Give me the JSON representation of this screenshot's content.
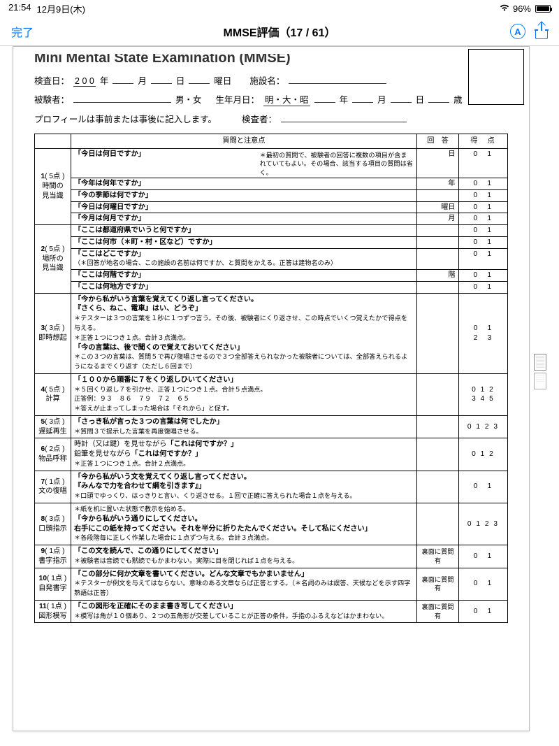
{
  "status": {
    "time": "21:54",
    "date": "12月9日(木)",
    "battery_pct": "96%"
  },
  "nav": {
    "done": "完了",
    "title": "MMSE評価（17 / 61）",
    "marker": "A"
  },
  "doc": {
    "truncated_title": "Mini Mental State Examination  (MMSE)",
    "labels": {
      "exam_date": "検査日：",
      "year_prefix": "2 0 0",
      "year": "年",
      "month": "月",
      "day": "日",
      "weekday": "曜日",
      "facility": "施設名：",
      "subject": "被験者：",
      "sex": "男・女",
      "birth": "生年月日：",
      "era": "明・大・昭",
      "age": "歳",
      "profile_note": "プロフィールは事前または事後に記入します。",
      "examiner": "検査者："
    },
    "headers": {
      "q": "質問と注意点",
      "a": "回　答",
      "s": "得　点"
    },
    "items": [
      {
        "num": "1",
        "pts": "( 5点 )",
        "cat": "時間の\n見当識",
        "note_float": "＊最初の質問で、被験者の回答に複数の項目が含まれていてもよい。その場合、該当する項目の質問は省く。",
        "rows": [
          {
            "q": "「今日は何日ですか」",
            "a": "日",
            "s": "0　1"
          },
          {
            "q": "「今年は何年ですか」",
            "a": "年",
            "s": "0　1"
          },
          {
            "q": "「今の季節は何ですか」",
            "a": "",
            "s": "0　1"
          },
          {
            "q": "「今日は何曜日ですか」",
            "a": "曜日",
            "s": "0　1"
          },
          {
            "q": "「今月は何月ですか」",
            "a": "月",
            "s": "0　1"
          }
        ]
      },
      {
        "num": "2",
        "pts": "( 5点 )",
        "cat": "場所の\n見当識",
        "rows": [
          {
            "q": "「ここは都道府県でいうと何ですか」",
            "a": "",
            "s": "0　1"
          },
          {
            "q": "「ここは何市（＊町・村・区など）ですか」",
            "a": "",
            "s": "0　1"
          },
          {
            "q": "「ここはどこですか」\n（＊回答が地名の場合、この施設の名前は何ですか、と質問をかえる。正答は建物名のみ）",
            "a": "",
            "s": "0　1"
          },
          {
            "q": "「ここは何階ですか」",
            "a": "階",
            "s": "0　1"
          },
          {
            "q": "「ここは何地方ですか」",
            "a": "",
            "s": "0　1"
          }
        ]
      },
      {
        "num": "3",
        "pts": "( 3点 )",
        "cat": "即時想起",
        "body": "「今から私がいう言葉を覚えてくり返し言ってください。\n『さくら、ねこ、電車』はい、どうぞ」\n＊テスターは３つの言葉を１秒に１つずつ言う。その後、被験者にくり返させ、この時点でいくつ覚えたかで得点を与える。\n＊正答１つにつき１点。合計３点満点。\n「今の言葉は、後で聞くので覚えておいてください」\n＊この３つの言葉は、質問５で再び復唱させるので３つ全部答えられなかった被験者については、全部答えられるようになるまでくり返す（ただし６回まで）",
        "bold_lines": [
          0,
          1,
          4
        ],
        "a": "",
        "s": "0　1\n2　3"
      },
      {
        "num": "4",
        "pts": "( 5点 )",
        "cat": "計算",
        "body": "「１００から順番に７をくり返しひいてください」\n＊５回くり返し７を引かせ、正答１つにつき１点。合計５点満点。\n正答例：９３　８６　７９　７２　６５\n＊答えが止まってしまった場合は「それから」と促す。",
        "bold_lines": [
          0
        ],
        "a": "",
        "s": "0 1 2\n3 4 5"
      },
      {
        "num": "5",
        "pts": "( 3点 )",
        "cat": "遅延再生",
        "body": "「さっき私が言った３つの言葉は何でしたか」\n＊質問３で提示した言葉を再度復唱させる。",
        "bold_lines": [
          0
        ],
        "a": "",
        "s": "0 1 2 3"
      },
      {
        "num": "6",
        "pts": "( 2点 )",
        "cat": "物品呼称",
        "body": "時計（又は鍵）を見せながら「これは何ですか？」\n鉛筆を見せながら「これは何ですか？」\n＊正答１つにつき１点。合計２点満点。",
        "bold_set": [
          "「これは何ですか？」"
        ],
        "a": "",
        "s": "0 1 2"
      },
      {
        "num": "7",
        "pts": "( 1点 )",
        "cat": "文の復唱",
        "body": "「今から私がいう文を覚えてくり返し言ってください。\n『みんなで力を合わせて綱を引きます』」\n＊口頭でゆっくり、はっきりと言い、くり返させる。１回で正確に答えられた場合１点を与える。",
        "bold_lines": [
          0,
          1
        ],
        "a": "",
        "s": "0　1"
      },
      {
        "num": "8",
        "pts": "( 3点 )",
        "cat": "口頭指示",
        "body": "＊紙を机に置いた状態で教示を始める。\n「今から私がいう通りにしてください。\n右手にこの紙を持ってください。それを半分に折りたたんでください。そして私にください」\n＊各段階毎に正しく作業した場合に１点ずつ与える。合計３点満点。",
        "bold_lines": [
          1,
          2
        ],
        "a": "",
        "s": "0 1 2 3"
      },
      {
        "num": "9",
        "pts": "( 1点 )",
        "cat": "書字指示",
        "body": "「この文を読んで、この通りにしてください」\n＊被験者は音読でも黙読でもかまわない。実際に目を閉じれば１点を与える。",
        "bold_lines": [
          0
        ],
        "a": "裏面に質問有",
        "s": "0　1"
      },
      {
        "num": "10",
        "pts": "( 1点 )",
        "cat": "自発書字",
        "body": "「この部分に何か文章を書いてください。どんな文章でもかまいません」\n＊テスターが例文を与えてはならない。意味のある文章ならば正答とする。（＊名詞のみは誤答、天候などを示す四字熟語は正答）",
        "bold_lines": [
          0
        ],
        "a": "裏面に質問有",
        "s": "0　1"
      },
      {
        "num": "11",
        "pts": "( 1点 )",
        "cat": "図形模写",
        "body": "「この図形を正確にそのまま書き写してください」\n＊模写は角が１０個あり、２つの五角形が交差していることが正答の条件。手指のふるえなどはかまわない。",
        "bold_lines": [
          0
        ],
        "a": "裏面に質問有",
        "s": "0　1"
      }
    ]
  }
}
